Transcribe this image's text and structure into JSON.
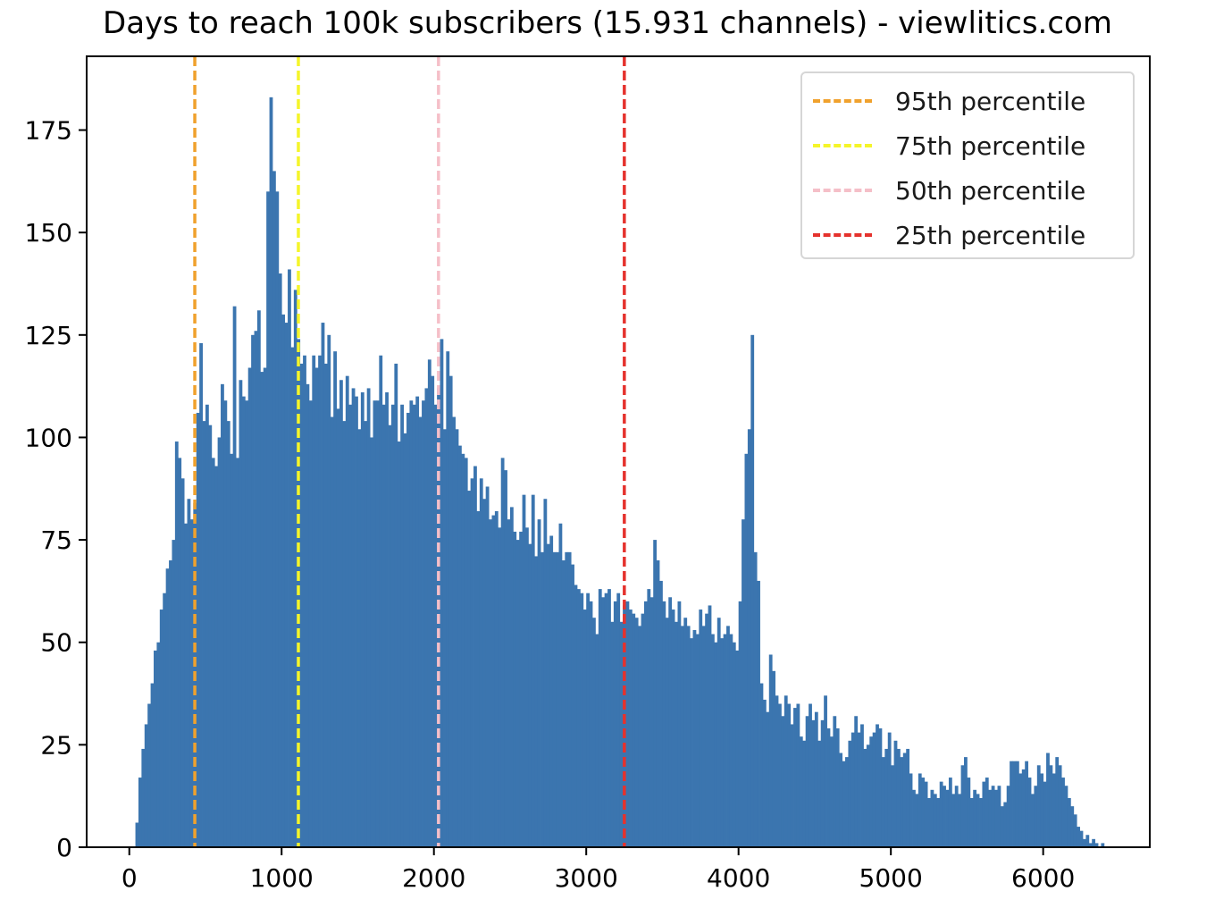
{
  "chart_data": {
    "type": "bar",
    "title": "Days to reach 100k subscribers (15.931 channels) - viewlitics.com",
    "xlabel": "",
    "ylabel": "",
    "xlim": [
      -280,
      6700
    ],
    "ylim": [
      0,
      193
    ],
    "x_ticks": [
      0,
      1000,
      2000,
      3000,
      4000,
      5000,
      6000
    ],
    "y_ticks": [
      0,
      25,
      50,
      75,
      100,
      125,
      150,
      175
    ],
    "bar_color": "#3b75af",
    "bin_width": 20,
    "histogram_bins": [
      [
        40,
        6
      ],
      [
        60,
        17
      ],
      [
        80,
        24
      ],
      [
        100,
        30
      ],
      [
        120,
        35
      ],
      [
        140,
        40
      ],
      [
        160,
        48
      ],
      [
        180,
        50
      ],
      [
        200,
        58
      ],
      [
        220,
        62
      ],
      [
        240,
        68
      ],
      [
        260,
        70
      ],
      [
        280,
        75
      ],
      [
        300,
        99
      ],
      [
        320,
        95
      ],
      [
        340,
        90
      ],
      [
        360,
        79
      ],
      [
        380,
        85
      ],
      [
        400,
        80
      ],
      [
        420,
        84
      ],
      [
        440,
        106
      ],
      [
        460,
        123
      ],
      [
        480,
        104
      ],
      [
        500,
        108
      ],
      [
        520,
        103
      ],
      [
        540,
        95
      ],
      [
        560,
        93
      ],
      [
        580,
        100
      ],
      [
        600,
        113
      ],
      [
        620,
        109
      ],
      [
        640,
        104
      ],
      [
        660,
        96
      ],
      [
        680,
        132
      ],
      [
        700,
        95
      ],
      [
        720,
        114
      ],
      [
        740,
        110
      ],
      [
        760,
        109
      ],
      [
        780,
        117
      ],
      [
        800,
        125
      ],
      [
        820,
        126
      ],
      [
        840,
        131
      ],
      [
        860,
        116
      ],
      [
        880,
        117
      ],
      [
        900,
        160
      ],
      [
        920,
        183
      ],
      [
        940,
        165
      ],
      [
        960,
        160
      ],
      [
        980,
        140
      ],
      [
        1000,
        130
      ],
      [
        1020,
        128
      ],
      [
        1040,
        141
      ],
      [
        1060,
        122
      ],
      [
        1080,
        136
      ],
      [
        1100,
        124
      ],
      [
        1120,
        118
      ],
      [
        1140,
        120
      ],
      [
        1160,
        113
      ],
      [
        1180,
        109
      ],
      [
        1200,
        120
      ],
      [
        1220,
        117
      ],
      [
        1240,
        120
      ],
      [
        1260,
        128
      ],
      [
        1280,
        118
      ],
      [
        1300,
        125
      ],
      [
        1320,
        105
      ],
      [
        1340,
        121
      ],
      [
        1360,
        107
      ],
      [
        1380,
        114
      ],
      [
        1400,
        104
      ],
      [
        1420,
        115
      ],
      [
        1440,
        108
      ],
      [
        1460,
        112
      ],
      [
        1480,
        110
      ],
      [
        1500,
        102
      ],
      [
        1520,
        111
      ],
      [
        1540,
        104
      ],
      [
        1560,
        112
      ],
      [
        1580,
        100
      ],
      [
        1600,
        109
      ],
      [
        1620,
        109
      ],
      [
        1640,
        120
      ],
      [
        1660,
        108
      ],
      [
        1680,
        111
      ],
      [
        1700,
        103
      ],
      [
        1720,
        108
      ],
      [
        1740,
        118
      ],
      [
        1760,
        99
      ],
      [
        1780,
        108
      ],
      [
        1800,
        101
      ],
      [
        1820,
        106
      ],
      [
        1840,
        109
      ],
      [
        1860,
        108
      ],
      [
        1880,
        110
      ],
      [
        1900,
        105
      ],
      [
        1920,
        109
      ],
      [
        1940,
        112
      ],
      [
        1960,
        119
      ],
      [
        1980,
        115
      ],
      [
        2000,
        108
      ],
      [
        2020,
        112
      ],
      [
        2040,
        124
      ],
      [
        2060,
        102
      ],
      [
        2080,
        121
      ],
      [
        2100,
        115
      ],
      [
        2120,
        105
      ],
      [
        2140,
        102
      ],
      [
        2160,
        98
      ],
      [
        2180,
        96
      ],
      [
        2200,
        95
      ],
      [
        2220,
        87
      ],
      [
        2240,
        90
      ],
      [
        2260,
        93
      ],
      [
        2280,
        82
      ],
      [
        2300,
        90
      ],
      [
        2320,
        85
      ],
      [
        2340,
        88
      ],
      [
        2360,
        80
      ],
      [
        2380,
        81
      ],
      [
        2400,
        82
      ],
      [
        2420,
        78
      ],
      [
        2440,
        95
      ],
      [
        2460,
        92
      ],
      [
        2480,
        80
      ],
      [
        2500,
        83
      ],
      [
        2520,
        77
      ],
      [
        2540,
        75
      ],
      [
        2560,
        77
      ],
      [
        2580,
        86
      ],
      [
        2600,
        78
      ],
      [
        2620,
        74
      ],
      [
        2640,
        86
      ],
      [
        2660,
        71
      ],
      [
        2680,
        80
      ],
      [
        2700,
        72
      ],
      [
        2720,
        85
      ],
      [
        2740,
        74
      ],
      [
        2760,
        76
      ],
      [
        2780,
        72
      ],
      [
        2800,
        72
      ],
      [
        2820,
        79
      ],
      [
        2840,
        70
      ],
      [
        2860,
        72
      ],
      [
        2880,
        72
      ],
      [
        2900,
        69
      ],
      [
        2920,
        64
      ],
      [
        2940,
        63
      ],
      [
        2960,
        62
      ],
      [
        2980,
        58
      ],
      [
        3000,
        62
      ],
      [
        3020,
        60
      ],
      [
        3040,
        56
      ],
      [
        3060,
        52
      ],
      [
        3080,
        63
      ],
      [
        3100,
        61
      ],
      [
        3120,
        62
      ],
      [
        3140,
        63
      ],
      [
        3160,
        55
      ],
      [
        3180,
        60
      ],
      [
        3200,
        62
      ],
      [
        3220,
        55
      ],
      [
        3240,
        59
      ],
      [
        3260,
        60
      ],
      [
        3280,
        58
      ],
      [
        3300,
        57
      ],
      [
        3320,
        56
      ],
      [
        3340,
        54
      ],
      [
        3360,
        57
      ],
      [
        3380,
        60
      ],
      [
        3400,
        63
      ],
      [
        3420,
        61
      ],
      [
        3440,
        75
      ],
      [
        3460,
        70
      ],
      [
        3480,
        65
      ],
      [
        3500,
        60
      ],
      [
        3520,
        56
      ],
      [
        3540,
        61
      ],
      [
        3560,
        58
      ],
      [
        3580,
        55
      ],
      [
        3600,
        60
      ],
      [
        3620,
        54
      ],
      [
        3640,
        56
      ],
      [
        3660,
        54
      ],
      [
        3680,
        51
      ],
      [
        3700,
        53
      ],
      [
        3720,
        52
      ],
      [
        3740,
        58
      ],
      [
        3760,
        54
      ],
      [
        3780,
        57
      ],
      [
        3800,
        59
      ],
      [
        3820,
        52
      ],
      [
        3840,
        50
      ],
      [
        3860,
        56
      ],
      [
        3880,
        51
      ],
      [
        3900,
        52
      ],
      [
        3920,
        54
      ],
      [
        3940,
        52
      ],
      [
        3960,
        50
      ],
      [
        3980,
        48
      ],
      [
        4000,
        60
      ],
      [
        4020,
        80
      ],
      [
        4040,
        96
      ],
      [
        4060,
        102
      ],
      [
        4080,
        125
      ],
      [
        4100,
        72
      ],
      [
        4120,
        65
      ],
      [
        4140,
        40
      ],
      [
        4160,
        36
      ],
      [
        4180,
        33
      ],
      [
        4200,
        47
      ],
      [
        4220,
        43
      ],
      [
        4240,
        37
      ],
      [
        4260,
        35
      ],
      [
        4280,
        32
      ],
      [
        4300,
        37
      ],
      [
        4320,
        35
      ],
      [
        4340,
        30
      ],
      [
        4360,
        34
      ],
      [
        4380,
        35
      ],
      [
        4400,
        27
      ],
      [
        4420,
        26
      ],
      [
        4440,
        32
      ],
      [
        4460,
        35
      ],
      [
        4480,
        31
      ],
      [
        4500,
        33
      ],
      [
        4520,
        26
      ],
      [
        4540,
        31
      ],
      [
        4560,
        37
      ],
      [
        4580,
        29
      ],
      [
        4600,
        27
      ],
      [
        4620,
        32
      ],
      [
        4640,
        29
      ],
      [
        4660,
        23
      ],
      [
        4680,
        21
      ],
      [
        4700,
        22
      ],
      [
        4720,
        26
      ],
      [
        4740,
        28
      ],
      [
        4760,
        32
      ],
      [
        4780,
        28
      ],
      [
        4800,
        30
      ],
      [
        4820,
        24
      ],
      [
        4840,
        25
      ],
      [
        4860,
        27
      ],
      [
        4880,
        28
      ],
      [
        4900,
        30
      ],
      [
        4920,
        29
      ],
      [
        4940,
        22
      ],
      [
        4960,
        24
      ],
      [
        4980,
        28
      ],
      [
        5000,
        20
      ],
      [
        5020,
        26
      ],
      [
        5040,
        24
      ],
      [
        5060,
        22
      ],
      [
        5080,
        23
      ],
      [
        5100,
        24
      ],
      [
        5120,
        18
      ],
      [
        5140,
        14
      ],
      [
        5160,
        13
      ],
      [
        5180,
        18
      ],
      [
        5200,
        17
      ],
      [
        5220,
        16
      ],
      [
        5240,
        12
      ],
      [
        5260,
        14
      ],
      [
        5280,
        13
      ],
      [
        5300,
        12
      ],
      [
        5320,
        16
      ],
      [
        5340,
        15
      ],
      [
        5360,
        14
      ],
      [
        5380,
        17
      ],
      [
        5400,
        13
      ],
      [
        5420,
        15
      ],
      [
        5440,
        13
      ],
      [
        5460,
        20
      ],
      [
        5480,
        22
      ],
      [
        5500,
        17
      ],
      [
        5520,
        12
      ],
      [
        5540,
        14
      ],
      [
        5560,
        13
      ],
      [
        5580,
        12
      ],
      [
        5600,
        16
      ],
      [
        5620,
        17
      ],
      [
        5640,
        14
      ],
      [
        5660,
        15
      ],
      [
        5680,
        14
      ],
      [
        5700,
        15
      ],
      [
        5720,
        10
      ],
      [
        5740,
        11
      ],
      [
        5760,
        15
      ],
      [
        5780,
        21
      ],
      [
        5800,
        21
      ],
      [
        5820,
        21
      ],
      [
        5840,
        18
      ],
      [
        5860,
        19
      ],
      [
        5880,
        21
      ],
      [
        5900,
        17
      ],
      [
        5920,
        13
      ],
      [
        5940,
        15
      ],
      [
        5960,
        20
      ],
      [
        5980,
        18
      ],
      [
        6000,
        16
      ],
      [
        6020,
        23
      ],
      [
        6040,
        20
      ],
      [
        6060,
        18
      ],
      [
        6080,
        22
      ],
      [
        6100,
        20
      ],
      [
        6120,
        17
      ],
      [
        6140,
        15
      ],
      [
        6160,
        12
      ],
      [
        6180,
        10
      ],
      [
        6200,
        8
      ],
      [
        6220,
        5
      ],
      [
        6240,
        4
      ],
      [
        6260,
        2
      ],
      [
        6280,
        3
      ],
      [
        6300,
        1
      ],
      [
        6320,
        2
      ],
      [
        6340,
        1
      ],
      [
        6360,
        0
      ],
      [
        6380,
        1
      ]
    ],
    "percentile_lines": [
      {
        "name": "95th percentile",
        "x": 430,
        "color": "#f0a12d"
      },
      {
        "name": "75th percentile",
        "x": 1110,
        "color": "#f5f52a"
      },
      {
        "name": "50th percentile",
        "x": 2030,
        "color": "#f5bfc8"
      },
      {
        "name": "25th percentile",
        "x": 3250,
        "color": "#e5322d"
      }
    ],
    "legend_position": "top-right",
    "grid": false
  }
}
